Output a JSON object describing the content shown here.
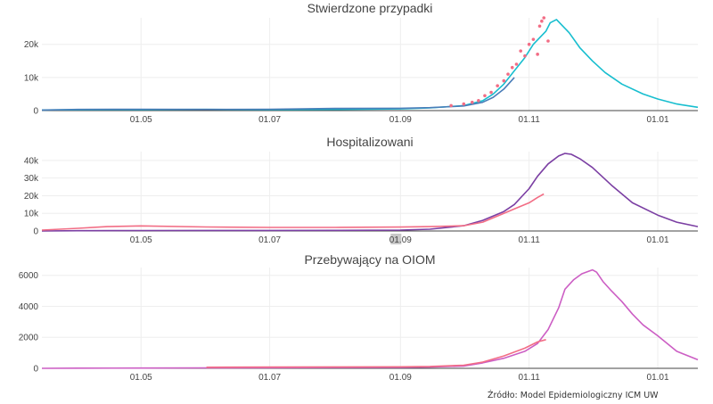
{
  "source_note": "Źródło: Model Epidemiologiczny ICM UW",
  "chart_data": [
    {
      "type": "line",
      "title": "Stwierdzone przypadki",
      "xlabel": "",
      "ylabel": "",
      "x_ticks": [
        "01.05",
        "01.07",
        "01.09",
        "01.11",
        "01.01"
      ],
      "xlim": [
        "2020-03-15",
        "2021-01-20"
      ],
      "ylim": [
        0,
        28000
      ],
      "y_ticks": [
        0,
        10000,
        20000
      ],
      "y_tick_labels": [
        "0",
        "10k",
        "20k"
      ],
      "grid": true,
      "legend": "none",
      "series": [
        {
          "kind": "line",
          "color": "#17becf",
          "x": [
            "2020-03-15",
            "2020-04-01",
            "2020-05-01",
            "2020-06-01",
            "2020-07-01",
            "2020-08-01",
            "2020-09-01",
            "2020-09-15",
            "2020-10-01",
            "2020-10-10",
            "2020-10-15",
            "2020-10-20",
            "2020-10-25",
            "2020-10-30",
            "2020-11-03",
            "2020-11-06",
            "2020-11-09",
            "2020-11-11",
            "2020-11-14",
            "2020-11-17",
            "2020-11-20",
            "2020-11-25",
            "2020-12-01",
            "2020-12-07",
            "2020-12-15",
            "2020-12-25",
            "2021-01-01",
            "2021-01-10",
            "2021-01-20"
          ],
          "y": [
            200,
            250,
            300,
            350,
            300,
            350,
            500,
            800,
            1500,
            3000,
            5000,
            8000,
            12000,
            16000,
            20000,
            22000,
            24000,
            26500,
            27500,
            25500,
            23500,
            19000,
            15000,
            11500,
            8000,
            5000,
            3500,
            2000,
            1000
          ]
        },
        {
          "kind": "line",
          "color": "#4a7db8",
          "x": [
            "2020-03-15",
            "2020-04-01",
            "2020-05-01",
            "2020-06-01",
            "2020-07-01",
            "2020-08-01",
            "2020-09-01",
            "2020-09-15",
            "2020-10-01",
            "2020-10-10",
            "2020-10-15",
            "2020-10-20",
            "2020-10-25"
          ],
          "y": [
            150,
            350,
            400,
            350,
            400,
            650,
            700,
            900,
            1400,
            2500,
            4000,
            6500,
            10000
          ]
        },
        {
          "kind": "scatter",
          "color": "#f26d85",
          "x": [
            "2020-09-25",
            "2020-10-01",
            "2020-10-05",
            "2020-10-08",
            "2020-10-11",
            "2020-10-14",
            "2020-10-17",
            "2020-10-20",
            "2020-10-22",
            "2020-10-24",
            "2020-10-26",
            "2020-10-28",
            "2020-10-30",
            "2020-11-01",
            "2020-11-03",
            "2020-11-05",
            "2020-11-06",
            "2020-11-07",
            "2020-11-08",
            "2020-11-10"
          ],
          "y": [
            1500,
            2000,
            2500,
            3000,
            4500,
            5500,
            7500,
            9000,
            11000,
            13000,
            14000,
            18000,
            16500,
            20000,
            21500,
            17000,
            25500,
            27000,
            28000,
            21000
          ]
        }
      ]
    },
    {
      "type": "line",
      "title": "Hospitalizowani",
      "xlabel": "",
      "ylabel": "",
      "x_ticks": [
        "01.05",
        "01.07",
        "01.09",
        "01.11",
        "01.01"
      ],
      "xlim": [
        "2020-03-15",
        "2021-01-20"
      ],
      "ylim": [
        0,
        45000
      ],
      "y_ticks": [
        0,
        10000,
        20000,
        30000,
        40000
      ],
      "y_tick_labels": [
        "0",
        "10k",
        "20k",
        "30k",
        "40k"
      ],
      "grid": true,
      "legend": "none",
      "series": [
        {
          "kind": "line",
          "color": "#7b3fa3",
          "x": [
            "2020-03-15",
            "2020-04-01",
            "2020-05-01",
            "2020-06-01",
            "2020-07-01",
            "2020-08-01",
            "2020-09-01",
            "2020-09-15",
            "2020-10-01",
            "2020-10-10",
            "2020-10-20",
            "2020-10-25",
            "2020-11-01",
            "2020-11-05",
            "2020-11-10",
            "2020-11-15",
            "2020-11-18",
            "2020-11-21",
            "2020-11-25",
            "2020-12-01",
            "2020-12-10",
            "2020-12-20",
            "2021-01-01",
            "2021-01-10",
            "2021-01-20"
          ],
          "y": [
            0,
            150,
            250,
            300,
            300,
            350,
            500,
            1000,
            3000,
            6000,
            11000,
            15000,
            24000,
            31000,
            38000,
            42500,
            44000,
            43500,
            41000,
            36000,
            26000,
            16000,
            9000,
            5000,
            2500
          ]
        },
        {
          "kind": "line",
          "color": "#f26d85",
          "x": [
            "2020-03-15",
            "2020-04-01",
            "2020-04-15",
            "2020-05-01",
            "2020-06-01",
            "2020-07-01",
            "2020-08-01",
            "2020-09-01",
            "2020-09-15",
            "2020-10-01",
            "2020-10-10",
            "2020-10-20",
            "2020-10-25",
            "2020-11-01",
            "2020-11-05",
            "2020-11-08"
          ],
          "y": [
            500,
            1500,
            2500,
            2900,
            2300,
            2000,
            2000,
            2200,
            2500,
            3000,
            5000,
            10000,
            12500,
            16000,
            19000,
            21000
          ]
        }
      ]
    },
    {
      "type": "line",
      "title": "Przebywający na OIOM",
      "xlabel": "",
      "ylabel": "",
      "x_ticks": [
        "01.05",
        "01.07",
        "01.09",
        "01.11",
        "01.01"
      ],
      "xlim": [
        "2020-03-15",
        "2021-01-20"
      ],
      "ylim": [
        0,
        6500
      ],
      "y_ticks": [
        0,
        2000,
        4000,
        6000
      ],
      "y_tick_labels": [
        "0",
        "2000",
        "4000",
        "6000"
      ],
      "grid": true,
      "legend": "none",
      "series": [
        {
          "kind": "line",
          "color": "#cc5ec4",
          "x": [
            "2020-03-15",
            "2020-04-01",
            "2020-05-01",
            "2020-06-01",
            "2020-07-01",
            "2020-08-01",
            "2020-09-01",
            "2020-09-15",
            "2020-10-01",
            "2020-10-10",
            "2020-10-20",
            "2020-10-30",
            "2020-11-05",
            "2020-11-10",
            "2020-11-15",
            "2020-11-18",
            "2020-11-22",
            "2020-11-26",
            "2020-12-01",
            "2020-12-03",
            "2020-12-06",
            "2020-12-10",
            "2020-12-15",
            "2020-12-20",
            "2020-12-25",
            "2021-01-01",
            "2021-01-10",
            "2021-01-20"
          ],
          "y": [
            0,
            10,
            20,
            30,
            40,
            50,
            60,
            80,
            150,
            350,
            650,
            1100,
            1600,
            2500,
            3900,
            5100,
            5700,
            6100,
            6350,
            6200,
            5600,
            5000,
            4300,
            3500,
            2800,
            2100,
            1100,
            550
          ]
        },
        {
          "kind": "line",
          "color": "#f26d85",
          "x": [
            "2020-06-01",
            "2020-07-01",
            "2020-08-01",
            "2020-09-01",
            "2020-09-15",
            "2020-10-01",
            "2020-10-10",
            "2020-10-20",
            "2020-10-30",
            "2020-11-05",
            "2020-11-09"
          ],
          "y": [
            70,
            80,
            90,
            100,
            120,
            200,
            400,
            800,
            1300,
            1700,
            1850
          ]
        }
      ]
    }
  ]
}
